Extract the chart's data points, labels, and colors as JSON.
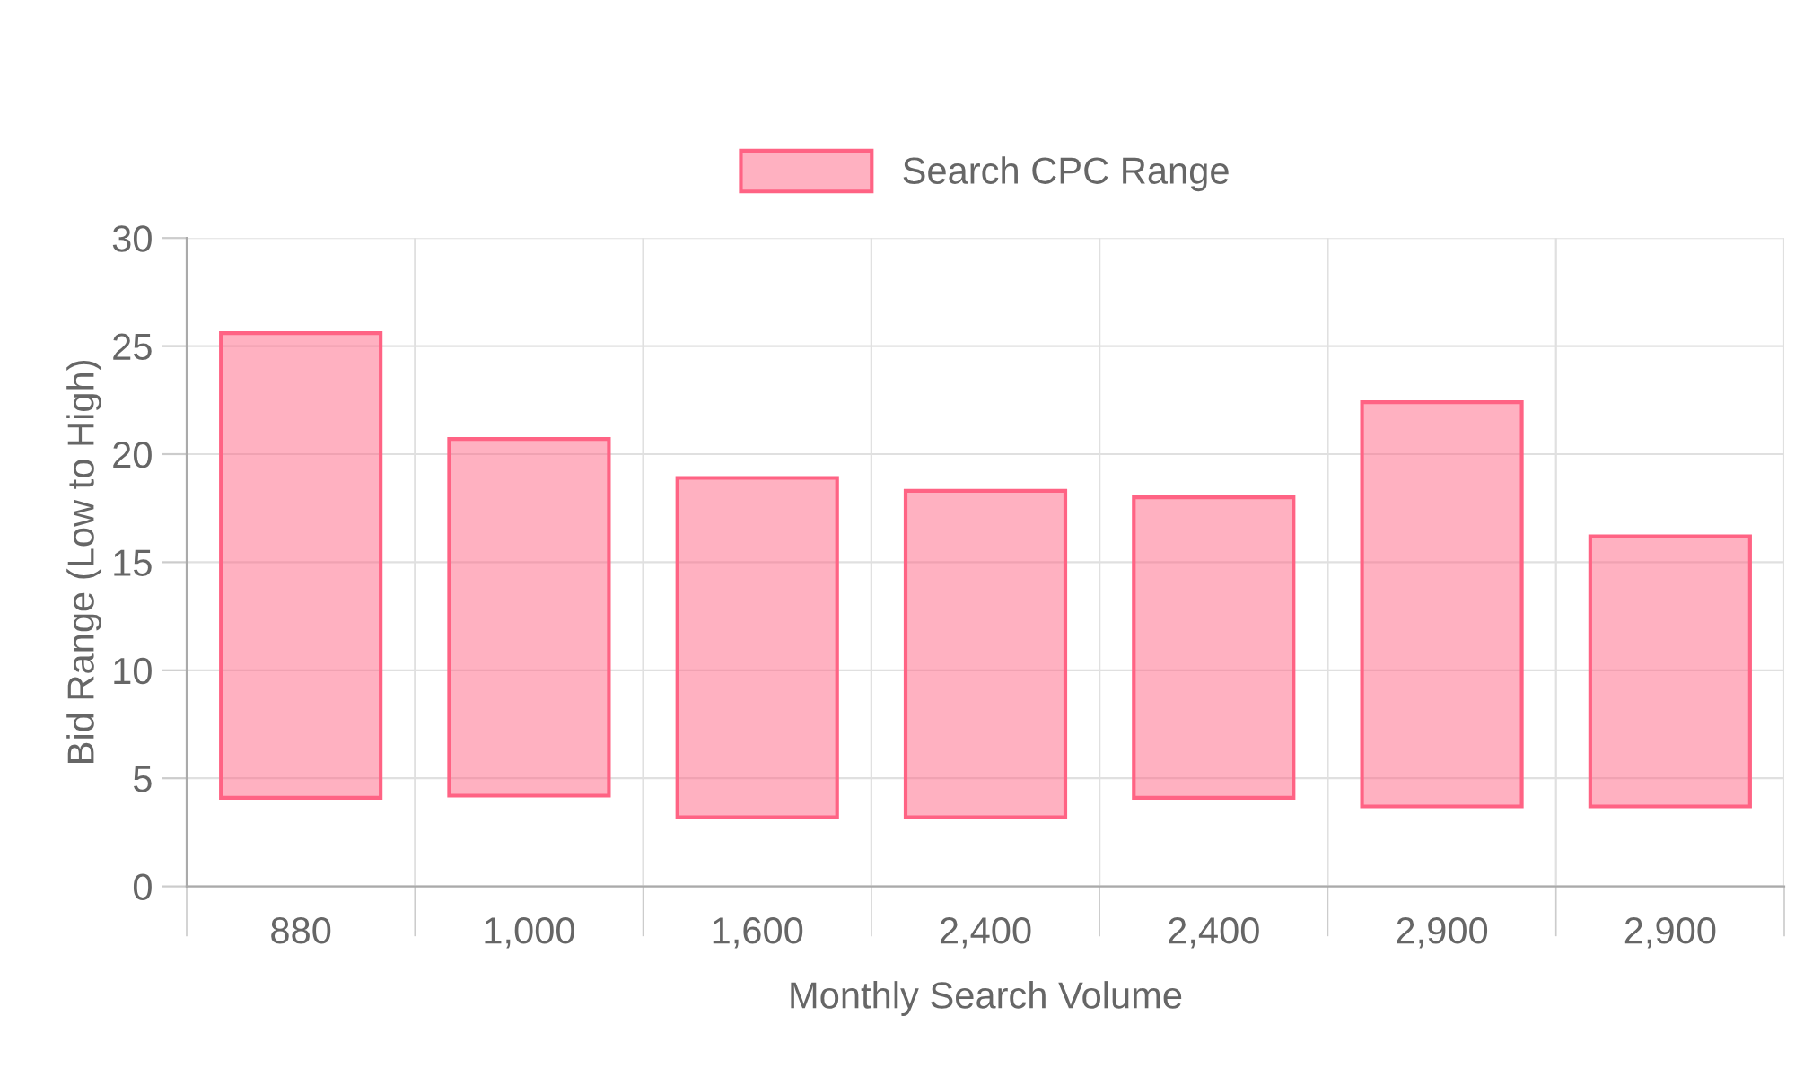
{
  "chart_data": {
    "type": "bar",
    "xlabel": "Monthly Search Volume",
    "ylabel": "Bid Range (Low to High)",
    "categories": [
      "880",
      "1,000",
      "1,600",
      "2,400",
      "2,400",
      "2,900",
      "2,900"
    ],
    "series": [
      {
        "name": "Search CPC Range",
        "color": "#ff6384",
        "base": [
          4.1,
          4.2,
          3.2,
          3.2,
          4.1,
          3.7,
          3.7
        ],
        "values": [
          21.5,
          16.5,
          15.7,
          15.1,
          13.9,
          18.7,
          12.5
        ]
      }
    ],
    "ylim": [
      0,
      30
    ],
    "yticks": [
      0,
      5,
      10,
      15,
      20,
      25,
      30
    ],
    "grid": true,
    "legend": "top"
  }
}
